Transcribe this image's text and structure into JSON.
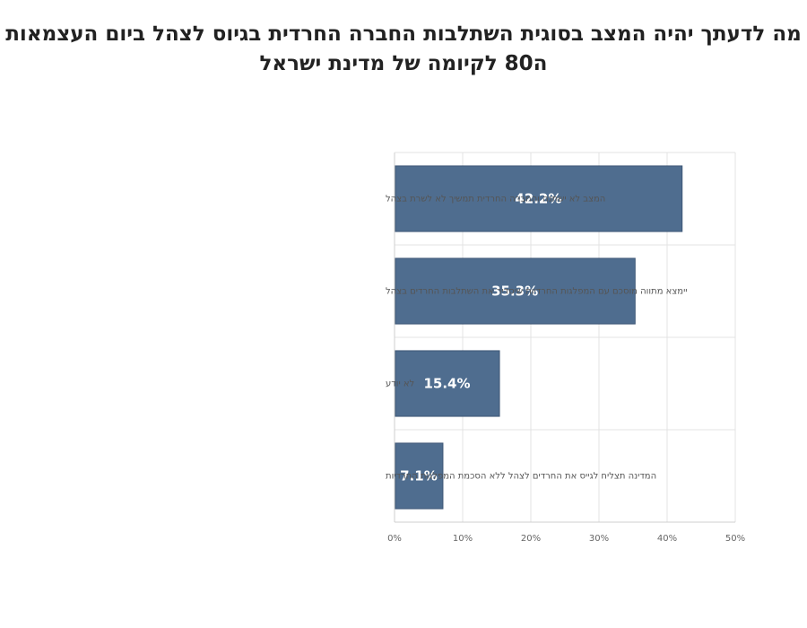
{
  "chart_data": {
    "type": "bar",
    "orientation": "horizontal",
    "title_lines": [
      "מה לדעתך יהיה המצב בסוגית השתלבות החברה החרדית בגיוס לצהל ביום העצמאות",
      "ה80 לקיומה של מדינת ישראל"
    ],
    "categories": [
      "המצב לא ישתנה והחברה החרדית תמשיך לא לשרת בצהל",
      "יימצא מתווה מוסכם עם המפלגות החרדיות שיסדיר את השתלבות החרדים בצהל",
      "לא יודע",
      "המדינה תצליח לגייס את החרדים לצהל ללא הסכמת המפלגות החרדיות"
    ],
    "values": [
      42.2,
      35.3,
      15.4,
      7.1
    ],
    "value_labels": [
      "42.2%",
      "35.3%",
      "15.4%",
      "7.1%"
    ],
    "xlim": [
      0,
      50
    ],
    "x_ticks": [
      0,
      10,
      20,
      30,
      40,
      50
    ],
    "x_tick_labels": [
      "0%",
      "10%",
      "20%",
      "30%",
      "40%",
      "50%"
    ],
    "bar_color": "#4f6d8f",
    "grid": true,
    "legend": "none"
  }
}
